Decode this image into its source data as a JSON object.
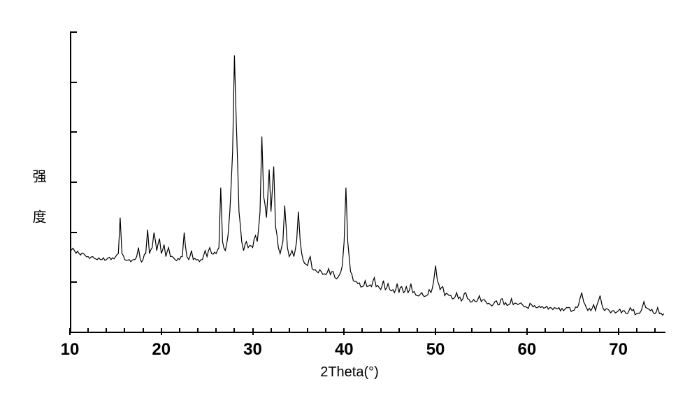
{
  "chart": {
    "type": "xrd-line",
    "xlabel": "2Theta(°)",
    "ylabel": "强 度",
    "xlim": [
      10,
      75
    ],
    "ylim": [
      0,
      100
    ],
    "x_ticks": [
      10,
      20,
      30,
      40,
      50,
      60,
      70
    ],
    "x_minor_step": 2,
    "y_tick_count": 6,
    "background_color": "#ffffff",
    "line_color": "#000000",
    "axis_color": "#000000",
    "label_fontsize": 20,
    "tick_fontsize": 24,
    "tick_fontweight": "bold",
    "line_width": 1.2,
    "data": [
      {
        "x": 10.0,
        "y": 28
      },
      {
        "x": 10.5,
        "y": 27
      },
      {
        "x": 11.0,
        "y": 26
      },
      {
        "x": 11.5,
        "y": 26
      },
      {
        "x": 12.0,
        "y": 25
      },
      {
        "x": 12.5,
        "y": 25
      },
      {
        "x": 13.0,
        "y": 24
      },
      {
        "x": 13.5,
        "y": 24
      },
      {
        "x": 14.0,
        "y": 24
      },
      {
        "x": 14.5,
        "y": 24
      },
      {
        "x": 15.0,
        "y": 25
      },
      {
        "x": 15.3,
        "y": 26
      },
      {
        "x": 15.5,
        "y": 38
      },
      {
        "x": 15.7,
        "y": 26
      },
      {
        "x": 16.0,
        "y": 24
      },
      {
        "x": 16.5,
        "y": 24
      },
      {
        "x": 17.0,
        "y": 24
      },
      {
        "x": 17.3,
        "y": 25
      },
      {
        "x": 17.5,
        "y": 28
      },
      {
        "x": 17.7,
        "y": 24
      },
      {
        "x": 18.0,
        "y": 24
      },
      {
        "x": 18.3,
        "y": 26
      },
      {
        "x": 18.5,
        "y": 34
      },
      {
        "x": 18.7,
        "y": 26
      },
      {
        "x": 19.0,
        "y": 28
      },
      {
        "x": 19.2,
        "y": 33
      },
      {
        "x": 19.5,
        "y": 27
      },
      {
        "x": 19.8,
        "y": 31
      },
      {
        "x": 20.0,
        "y": 26
      },
      {
        "x": 20.3,
        "y": 29
      },
      {
        "x": 20.5,
        "y": 25
      },
      {
        "x": 20.8,
        "y": 28
      },
      {
        "x": 21.0,
        "y": 25
      },
      {
        "x": 21.5,
        "y": 24
      },
      {
        "x": 22.0,
        "y": 24
      },
      {
        "x": 22.3,
        "y": 25
      },
      {
        "x": 22.5,
        "y": 33
      },
      {
        "x": 22.8,
        "y": 25
      },
      {
        "x": 23.0,
        "y": 24
      },
      {
        "x": 23.3,
        "y": 27
      },
      {
        "x": 23.5,
        "y": 24
      },
      {
        "x": 24.0,
        "y": 24
      },
      {
        "x": 24.5,
        "y": 24
      },
      {
        "x": 24.8,
        "y": 27
      },
      {
        "x": 25.0,
        "y": 25
      },
      {
        "x": 25.3,
        "y": 28
      },
      {
        "x": 25.5,
        "y": 26
      },
      {
        "x": 26.0,
        "y": 26
      },
      {
        "x": 26.3,
        "y": 28
      },
      {
        "x": 26.5,
        "y": 48
      },
      {
        "x": 26.7,
        "y": 30
      },
      {
        "x": 27.0,
        "y": 27
      },
      {
        "x": 27.3,
        "y": 32
      },
      {
        "x": 27.5,
        "y": 40
      },
      {
        "x": 27.8,
        "y": 60
      },
      {
        "x": 28.0,
        "y": 92
      },
      {
        "x": 28.2,
        "y": 70
      },
      {
        "x": 28.5,
        "y": 40
      },
      {
        "x": 28.8,
        "y": 30
      },
      {
        "x": 29.0,
        "y": 27
      },
      {
        "x": 29.3,
        "y": 30
      },
      {
        "x": 29.5,
        "y": 28
      },
      {
        "x": 30.0,
        "y": 28
      },
      {
        "x": 30.3,
        "y": 32
      },
      {
        "x": 30.5,
        "y": 30
      },
      {
        "x": 30.8,
        "y": 40
      },
      {
        "x": 31.0,
        "y": 65
      },
      {
        "x": 31.2,
        "y": 45
      },
      {
        "x": 31.5,
        "y": 38
      },
      {
        "x": 31.8,
        "y": 54
      },
      {
        "x": 32.0,
        "y": 40
      },
      {
        "x": 32.3,
        "y": 55
      },
      {
        "x": 32.5,
        "y": 35
      },
      {
        "x": 32.8,
        "y": 28
      },
      {
        "x": 33.0,
        "y": 26
      },
      {
        "x": 33.3,
        "y": 30
      },
      {
        "x": 33.5,
        "y": 42
      },
      {
        "x": 33.8,
        "y": 28
      },
      {
        "x": 34.0,
        "y": 25
      },
      {
        "x": 34.3,
        "y": 27
      },
      {
        "x": 34.5,
        "y": 25
      },
      {
        "x": 34.8,
        "y": 30
      },
      {
        "x": 35.0,
        "y": 40
      },
      {
        "x": 35.2,
        "y": 30
      },
      {
        "x": 35.5,
        "y": 24
      },
      {
        "x": 36.0,
        "y": 22
      },
      {
        "x": 36.3,
        "y": 25
      },
      {
        "x": 36.5,
        "y": 21
      },
      {
        "x": 37.0,
        "y": 20
      },
      {
        "x": 37.5,
        "y": 20
      },
      {
        "x": 38.0,
        "y": 19
      },
      {
        "x": 38.3,
        "y": 21
      },
      {
        "x": 38.5,
        "y": 19
      },
      {
        "x": 38.8,
        "y": 20
      },
      {
        "x": 39.0,
        "y": 18
      },
      {
        "x": 39.5,
        "y": 19
      },
      {
        "x": 39.8,
        "y": 22
      },
      {
        "x": 40.0,
        "y": 30
      },
      {
        "x": 40.2,
        "y": 48
      },
      {
        "x": 40.4,
        "y": 30
      },
      {
        "x": 40.7,
        "y": 20
      },
      {
        "x": 41.0,
        "y": 17
      },
      {
        "x": 41.5,
        "y": 16
      },
      {
        "x": 42.0,
        "y": 15
      },
      {
        "x": 42.3,
        "y": 17
      },
      {
        "x": 42.5,
        "y": 15
      },
      {
        "x": 43.0,
        "y": 15
      },
      {
        "x": 43.3,
        "y": 18
      },
      {
        "x": 43.5,
        "y": 15
      },
      {
        "x": 44.0,
        "y": 14
      },
      {
        "x": 44.3,
        "y": 17
      },
      {
        "x": 44.5,
        "y": 14
      },
      {
        "x": 44.8,
        "y": 16
      },
      {
        "x": 45.0,
        "y": 14
      },
      {
        "x": 45.5,
        "y": 13
      },
      {
        "x": 45.8,
        "y": 16
      },
      {
        "x": 46.0,
        "y": 13
      },
      {
        "x": 46.3,
        "y": 15
      },
      {
        "x": 46.5,
        "y": 13
      },
      {
        "x": 46.8,
        "y": 15
      },
      {
        "x": 47.0,
        "y": 13
      },
      {
        "x": 47.3,
        "y": 16
      },
      {
        "x": 47.5,
        "y": 13
      },
      {
        "x": 48.0,
        "y": 12
      },
      {
        "x": 48.5,
        "y": 13
      },
      {
        "x": 49.0,
        "y": 12
      },
      {
        "x": 49.3,
        "y": 14
      },
      {
        "x": 49.5,
        "y": 13
      },
      {
        "x": 49.8,
        "y": 17
      },
      {
        "x": 50.0,
        "y": 22
      },
      {
        "x": 50.2,
        "y": 17
      },
      {
        "x": 50.5,
        "y": 14
      },
      {
        "x": 50.8,
        "y": 15
      },
      {
        "x": 51.0,
        "y": 12
      },
      {
        "x": 51.5,
        "y": 12
      },
      {
        "x": 52.0,
        "y": 11
      },
      {
        "x": 52.3,
        "y": 13
      },
      {
        "x": 52.5,
        "y": 11
      },
      {
        "x": 53.0,
        "y": 11
      },
      {
        "x": 53.3,
        "y": 13
      },
      {
        "x": 53.5,
        "y": 11
      },
      {
        "x": 54.0,
        "y": 10
      },
      {
        "x": 54.5,
        "y": 10
      },
      {
        "x": 54.8,
        "y": 12
      },
      {
        "x": 55.0,
        "y": 10
      },
      {
        "x": 55.5,
        "y": 10
      },
      {
        "x": 56.0,
        "y": 9
      },
      {
        "x": 56.5,
        "y": 10
      },
      {
        "x": 57.0,
        "y": 9
      },
      {
        "x": 57.3,
        "y": 11
      },
      {
        "x": 57.5,
        "y": 9
      },
      {
        "x": 58.0,
        "y": 9
      },
      {
        "x": 58.3,
        "y": 11
      },
      {
        "x": 58.5,
        "y": 9
      },
      {
        "x": 59.0,
        "y": 9
      },
      {
        "x": 59.5,
        "y": 9
      },
      {
        "x": 60.0,
        "y": 8
      },
      {
        "x": 60.5,
        "y": 9
      },
      {
        "x": 61.0,
        "y": 8
      },
      {
        "x": 61.5,
        "y": 8
      },
      {
        "x": 62.0,
        "y": 8
      },
      {
        "x": 62.5,
        "y": 8
      },
      {
        "x": 63.0,
        "y": 8
      },
      {
        "x": 63.5,
        "y": 8
      },
      {
        "x": 64.0,
        "y": 7
      },
      {
        "x": 64.5,
        "y": 8
      },
      {
        "x": 65.0,
        "y": 7
      },
      {
        "x": 65.5,
        "y": 8
      },
      {
        "x": 65.8,
        "y": 11
      },
      {
        "x": 66.0,
        "y": 13
      },
      {
        "x": 66.2,
        "y": 10
      },
      {
        "x": 66.5,
        "y": 8
      },
      {
        "x": 67.0,
        "y": 7
      },
      {
        "x": 67.3,
        "y": 9
      },
      {
        "x": 67.5,
        "y": 7
      },
      {
        "x": 67.8,
        "y": 10
      },
      {
        "x": 68.0,
        "y": 12
      },
      {
        "x": 68.2,
        "y": 9
      },
      {
        "x": 68.5,
        "y": 7
      },
      {
        "x": 69.0,
        "y": 7
      },
      {
        "x": 69.5,
        "y": 7
      },
      {
        "x": 70.0,
        "y": 7
      },
      {
        "x": 70.5,
        "y": 7
      },
      {
        "x": 71.0,
        "y": 6
      },
      {
        "x": 71.3,
        "y": 8
      },
      {
        "x": 71.5,
        "y": 7
      },
      {
        "x": 72.0,
        "y": 6
      },
      {
        "x": 72.5,
        "y": 7
      },
      {
        "x": 72.8,
        "y": 10
      },
      {
        "x": 73.0,
        "y": 8
      },
      {
        "x": 73.5,
        "y": 7
      },
      {
        "x": 74.0,
        "y": 6
      },
      {
        "x": 74.3,
        "y": 8
      },
      {
        "x": 74.5,
        "y": 6
      },
      {
        "x": 75.0,
        "y": 6
      }
    ]
  }
}
